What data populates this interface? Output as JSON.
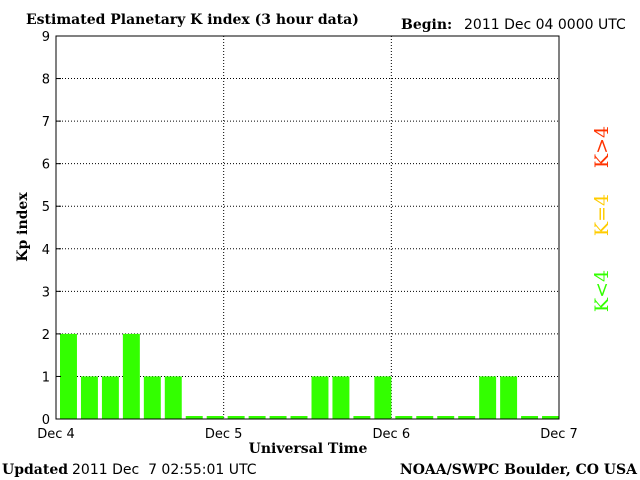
{
  "header": {
    "title": "Estimated Planetary K index (3 hour data)",
    "begin_label": "Begin:",
    "begin_value": "2011 Dec 04 0000 UTC"
  },
  "footer": {
    "updated_label": "Updated",
    "updated_value": "2011 Dec  7 02:55:01 UTC",
    "source": "NOAA/SWPC Boulder, CO USA"
  },
  "legend": {
    "gt": "K>4",
    "eq": "K=4",
    "lt": "K<4"
  },
  "colors": {
    "below": "#33ff00",
    "equal": "#ffcc00",
    "above": "#ff3300",
    "grid": "#000000"
  },
  "chart_data": {
    "type": "bar",
    "title": "Estimated Planetary K index (3 hour data)",
    "xlabel": "Universal Time",
    "ylabel": "Kp index",
    "ylim": [
      0,
      9
    ],
    "y_ticks": [
      "0",
      "1",
      "2",
      "3",
      "4",
      "5",
      "6",
      "7",
      "8",
      "9"
    ],
    "x_ticks": [
      "Dec 4",
      "Dec 5",
      "Dec 6",
      "Dec 7"
    ],
    "grid": true,
    "categories": [
      "2011-12-04 00:00",
      "2011-12-04 03:00",
      "2011-12-04 06:00",
      "2011-12-04 09:00",
      "2011-12-04 12:00",
      "2011-12-04 15:00",
      "2011-12-04 18:00",
      "2011-12-04 21:00",
      "2011-12-05 00:00",
      "2011-12-05 03:00",
      "2011-12-05 06:00",
      "2011-12-05 09:00",
      "2011-12-05 12:00",
      "2011-12-05 15:00",
      "2011-12-05 18:00",
      "2011-12-05 21:00",
      "2011-12-06 00:00",
      "2011-12-06 03:00",
      "2011-12-06 06:00",
      "2011-12-06 09:00",
      "2011-12-06 12:00",
      "2011-12-06 15:00",
      "2011-12-06 18:00",
      "2011-12-06 21:00"
    ],
    "values": [
      2,
      1,
      1,
      2,
      1,
      1,
      0,
      0,
      0,
      0,
      0,
      0,
      1,
      1,
      0,
      1,
      0,
      0,
      0,
      0,
      1,
      1,
      0,
      0
    ]
  }
}
